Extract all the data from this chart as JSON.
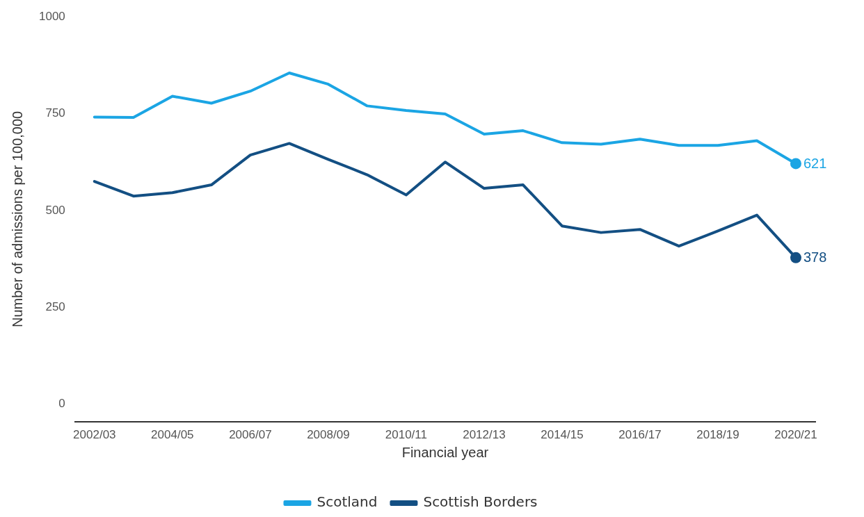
{
  "chart_data": {
    "type": "line",
    "xlabel": "Financial year",
    "ylabel": "Number of admissions per 100,000",
    "categories": [
      "2002/03",
      null,
      "2004/05",
      null,
      "2006/07",
      null,
      "2008/09",
      null,
      "2010/11",
      null,
      "2012/13",
      null,
      "2014/15",
      null,
      "2016/17",
      null,
      "2018/19",
      null,
      "2020/21"
    ],
    "series": [
      {
        "name": "Scotland",
        "color": "#1ba5e4",
        "values": [
          741,
          740,
          795,
          777,
          808,
          855,
          826,
          770,
          758,
          749,
          697,
          706,
          675,
          671,
          684,
          668,
          668,
          680,
          621
        ],
        "value_labels": [
          null,
          null,
          null,
          null,
          null,
          null,
          null,
          null,
          null,
          null,
          null,
          null,
          null,
          null,
          null,
          null,
          null,
          null,
          "621"
        ]
      },
      {
        "name": "Scottish Borders",
        "color": "#134f83",
        "values": [
          575,
          537,
          546,
          566,
          643,
          673,
          632,
          592,
          540,
          625,
          557,
          566,
          460,
          443,
          451,
          408,
          447,
          488,
          378
        ],
        "value_labels": [
          null,
          null,
          null,
          null,
          null,
          null,
          null,
          null,
          null,
          null,
          null,
          null,
          null,
          null,
          null,
          null,
          null,
          null,
          "378"
        ]
      }
    ],
    "ylim": [
      -45,
      1000
    ],
    "yticks": [
      0,
      250,
      500,
      750,
      1000
    ],
    "grid": false,
    "legend": "bottom",
    "line_style": "solid"
  }
}
